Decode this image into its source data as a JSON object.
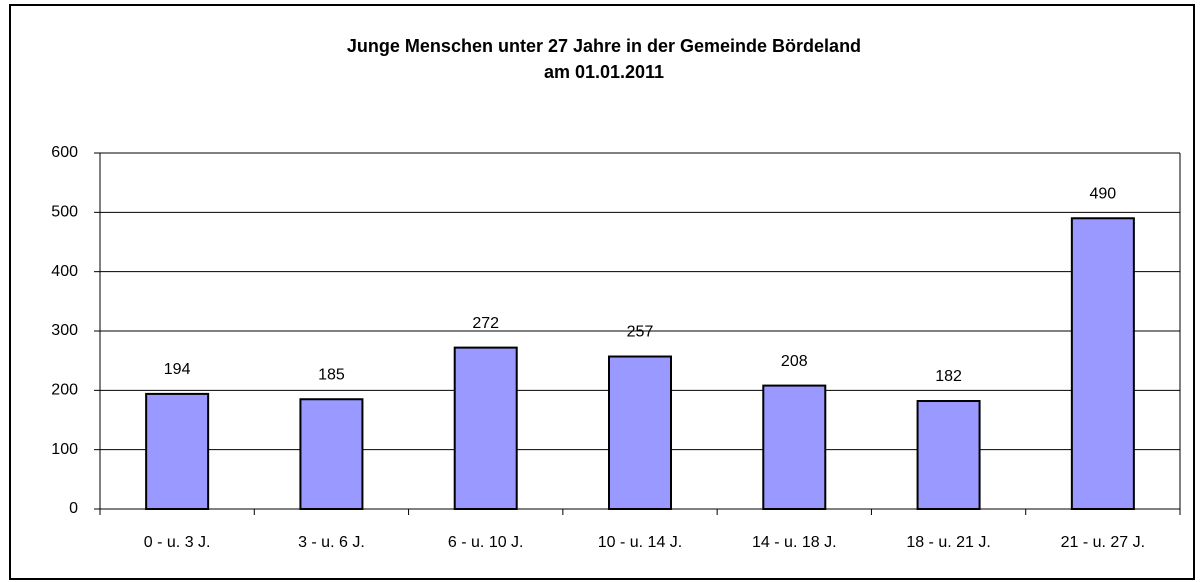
{
  "chart_data": {
    "type": "bar",
    "title": [
      "Junge Menschen unter 27 Jahre in der Gemeinde Bördeland",
      "am 01.01.2011"
    ],
    "categories": [
      "0 - u. 3 J.",
      "3 - u. 6 J.",
      "6 - u. 10 J.",
      "10 - u. 14 J.",
      "14 - u. 18 J.",
      "18 - u. 21 J.",
      "21 - u. 27 J."
    ],
    "values": [
      194,
      185,
      272,
      257,
      208,
      182,
      490
    ],
    "color": "#9999ff",
    "ylim": [
      0,
      600
    ],
    "yticks": [
      0,
      100,
      200,
      300,
      400,
      500,
      600
    ],
    "grid": true
  }
}
